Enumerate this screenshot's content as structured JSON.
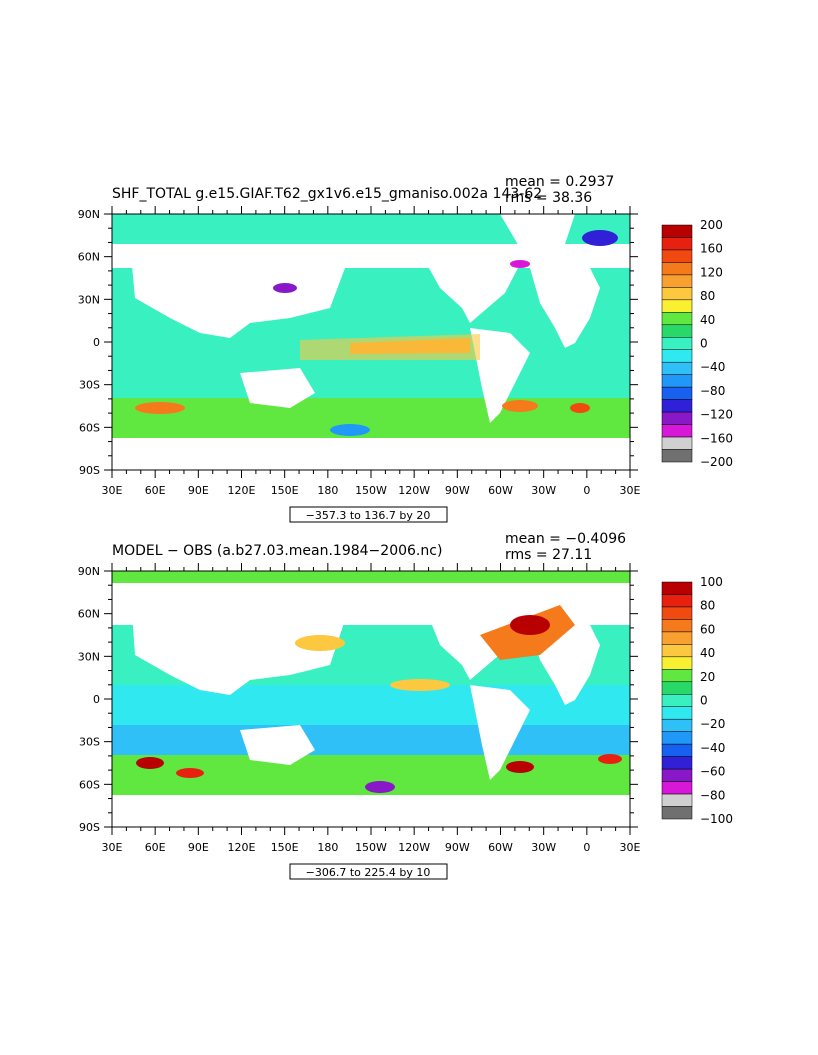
{
  "panels": [
    {
      "title": "SHF_TOTAL g.e15.GIAF.T62_gx1v6.e15_gmaniso.002a 143-62",
      "mean_label": "mean = 0.2937",
      "rms_label": "rms = 38.36",
      "range_label": "−357.3 to 136.7 by 20",
      "colorbar": {
        "labels": [
          "200",
          "160",
          "120",
          "80",
          "40",
          "0",
          "−40",
          "−80",
          "−120",
          "−160",
          "−200"
        ],
        "colors": [
          "#b80000",
          "#e82010",
          "#f04a10",
          "#f47a1c",
          "#f8a030",
          "#fcc840",
          "#f8f030",
          "#60e840",
          "#28d868",
          "#38f0c0",
          "#30e8f0",
          "#30c0f8",
          "#2098f8",
          "#1860f0",
          "#3020d8",
          "#8818c8",
          "#d818d8",
          "#d0d0d0",
          "#707070"
        ]
      },
      "chart_data": {
        "type": "heatmap",
        "title": "SHF_TOTAL g.e15.GIAF.T62_gx1v6.e15_gmaniso.002a 143-62",
        "mean": 0.2937,
        "rms": 38.36,
        "contour_min": -357.3,
        "contour_max": 136.7,
        "contour_interval": 20,
        "xlim": [
          "30E",
          "30E"
        ],
        "ylim": [
          "90S",
          "90N"
        ]
      }
    },
    {
      "title": "MODEL − OBS (a.b27.03.mean.1984−2006.nc)",
      "mean_label": "mean = −0.4096",
      "rms_label": "rms = 27.11",
      "range_label": "−306.7 to 225.4 by 10",
      "colorbar": {
        "labels": [
          "100",
          "80",
          "60",
          "40",
          "20",
          "0",
          "−20",
          "−40",
          "−60",
          "−80",
          "−100"
        ],
        "colors": [
          "#b80000",
          "#e82010",
          "#f04a10",
          "#f47a1c",
          "#f8a030",
          "#fcc840",
          "#f8f030",
          "#60e840",
          "#28d868",
          "#38f0c0",
          "#30e8f0",
          "#30c0f8",
          "#2098f8",
          "#1860f0",
          "#3020d8",
          "#8818c8",
          "#d818d8",
          "#d0d0d0",
          "#707070"
        ]
      },
      "chart_data": {
        "type": "heatmap",
        "title": "MODEL − OBS (a.b27.03.mean.1984−2006.nc)",
        "mean": -0.4096,
        "rms": 27.11,
        "contour_min": -306.7,
        "contour_max": 225.4,
        "contour_interval": 10,
        "xlim": [
          "30E",
          "30E"
        ],
        "ylim": [
          "90S",
          "90N"
        ]
      }
    }
  ],
  "axes": {
    "x_ticks": [
      "30E",
      "60E",
      "90E",
      "120E",
      "150E",
      "180",
      "150W",
      "120W",
      "90W",
      "60W",
      "30W",
      "0",
      "30E"
    ],
    "y_ticks": [
      "90N",
      "60N",
      "30N",
      "0",
      "30S",
      "60S",
      "90S"
    ]
  }
}
